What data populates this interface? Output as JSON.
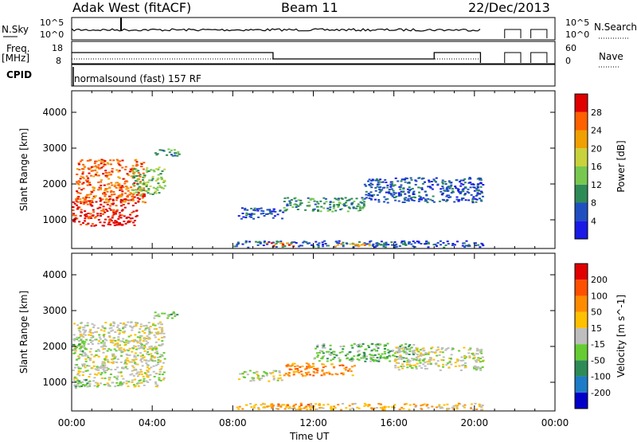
{
  "header": {
    "station": "Adak West (fitACF)",
    "beam": "Beam 11",
    "date": "22/Dec/2013"
  },
  "top_panels": {
    "nsky_label": "N.Sky",
    "nsky_ticks": [
      "10^5",
      "10^0"
    ],
    "nsearch_label": "N.Search",
    "nsearch_ticks": [
      "10^5",
      "10^0"
    ],
    "freq_label": "Freq.",
    "freq_unit": "[MHz]",
    "freq_ticks": [
      "18",
      "8"
    ],
    "nave_label": "Nave",
    "nave_ticks": [
      "60",
      "0"
    ],
    "cpid_label": "CPID",
    "cpid_text": "normalsound (fast) 157 RF"
  },
  "colors": {
    "power_scale": [
      "#1a1ae6",
      "#2050c0",
      "#2e8b57",
      "#78c850",
      "#c8d23c",
      "#f0a000",
      "#ff6000",
      "#e00000"
    ],
    "velocity_scale": [
      "#0000c8",
      "#1e7bc8",
      "#2e8b57",
      "#66cc33",
      "#bebebe",
      "#ffc000",
      "#ff8c00",
      "#ff5000",
      "#e00000"
    ]
  },
  "chart_data": [
    {
      "type": "heatmap",
      "title": "Power",
      "quantity": "power",
      "ylabel": "Slant Range [km]",
      "yticks": [
        "1000",
        "2000",
        "3000",
        "4000"
      ],
      "ylim": [
        200,
        4600
      ],
      "xlim": [
        0,
        24
      ],
      "colorbar_label": "Power [dB]",
      "colorbar_ticks": [
        "4",
        "8",
        "12",
        "16",
        "20",
        "24",
        "28"
      ],
      "regions": [
        {
          "t0": 0.0,
          "t1": 3.2,
          "r0": 850,
          "r1": 1600,
          "class": 7
        },
        {
          "t0": 0.2,
          "t1": 3.6,
          "r0": 1500,
          "r1": 2700,
          "class": 6
        },
        {
          "t0": 3.0,
          "t1": 4.6,
          "r0": 1700,
          "r1": 2500,
          "class": 3
        },
        {
          "t0": 4.0,
          "t1": 5.3,
          "r0": 2800,
          "r1": 3000,
          "class": 2
        },
        {
          "t0": 8.2,
          "t1": 10.5,
          "r0": 1050,
          "r1": 1350,
          "class": 1
        },
        {
          "t0": 10.5,
          "t1": 14.5,
          "r0": 1250,
          "r1": 1650,
          "class": 2
        },
        {
          "t0": 14.5,
          "t1": 20.4,
          "r0": 1500,
          "r1": 2200,
          "class": 1
        },
        {
          "t0": 8.0,
          "t1": 20.4,
          "r0": 250,
          "r1": 430,
          "class": 1
        },
        {
          "t0": 9.5,
          "t1": 11.0,
          "r0": 280,
          "r1": 380,
          "class": 6
        },
        {
          "t0": 13.0,
          "t1": 15.0,
          "r0": 280,
          "r1": 380,
          "class": 5
        }
      ]
    },
    {
      "type": "heatmap",
      "title": "Velocity",
      "quantity": "velocity",
      "ylabel": "Slant Range [km]",
      "yticks": [
        "1000",
        "2000",
        "3000",
        "4000"
      ],
      "ylim": [
        200,
        4600
      ],
      "xlim": [
        0,
        24
      ],
      "xlabel": "Time UT",
      "xticks": [
        "00:00",
        "04:00",
        "08:00",
        "12:00",
        "16:00",
        "20:00",
        "00:00"
      ],
      "colorbar_label": "Velocity [m s^-1]",
      "colorbar_ticks": [
        "-200",
        "-100",
        "-50",
        "-15",
        "15",
        "50",
        "100",
        "200"
      ],
      "regions": [
        {
          "t0": 0.0,
          "t1": 4.6,
          "r0": 900,
          "r1": 2700,
          "class": 4
        },
        {
          "t0": 0.0,
          "t1": 1.0,
          "r0": 850,
          "r1": 1100,
          "class": 3
        },
        {
          "t0": 0.0,
          "t1": 0.6,
          "r0": 1800,
          "r1": 2200,
          "class": 3
        },
        {
          "t0": 4.0,
          "t1": 5.3,
          "r0": 2800,
          "r1": 3000,
          "class": 3
        },
        {
          "t0": 8.2,
          "t1": 10.5,
          "r0": 1050,
          "r1": 1350,
          "class": 4
        },
        {
          "t0": 10.5,
          "t1": 14.0,
          "r0": 1200,
          "r1": 1550,
          "class": 6
        },
        {
          "t0": 12.0,
          "t1": 17.0,
          "r0": 1600,
          "r1": 2100,
          "class": 3
        },
        {
          "t0": 16.0,
          "t1": 20.4,
          "r0": 1350,
          "r1": 2000,
          "class": 4
        },
        {
          "t0": 8.0,
          "t1": 20.4,
          "r0": 250,
          "r1": 430,
          "class": 5
        },
        {
          "t0": 9.5,
          "t1": 12.0,
          "r0": 300,
          "r1": 420,
          "class": 6
        }
      ]
    }
  ]
}
